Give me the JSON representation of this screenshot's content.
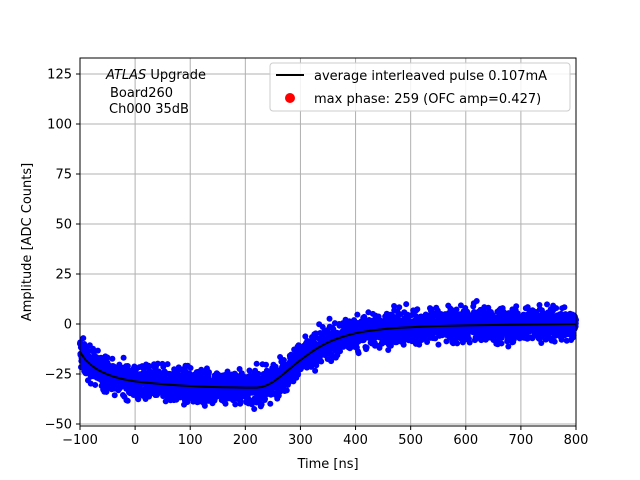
{
  "chart_data": {
    "type": "scatter",
    "xlabel": "Time [ns]",
    "ylabel": "Amplitude [ADC Counts]",
    "xlim": [
      -100,
      800
    ],
    "ylim": [
      -51,
      133
    ],
    "xticks": [
      -100,
      0,
      100,
      200,
      300,
      400,
      500,
      600,
      700,
      800
    ],
    "yticks": [
      -50,
      -25,
      0,
      25,
      50,
      75,
      100,
      125
    ],
    "grid": true,
    "legend_placement": "top-right",
    "annotation": {
      "line1_italic": "ATLAS",
      "line1_rest": " Upgrade",
      "line2": "Board260",
      "line3": "Ch000 35dB"
    },
    "series": [
      {
        "name": "average interleaved pulse 0.107mA",
        "kind": "line",
        "color": "#000000",
        "x": [
          -100,
          -90,
          -80,
          -70,
          -60,
          -50,
          -40,
          -30,
          -20,
          -10,
          0,
          20,
          40,
          60,
          80,
          100,
          120,
          140,
          160,
          180,
          200,
          220,
          230,
          240,
          250,
          260,
          270,
          280,
          290,
          300,
          310,
          320,
          330,
          340,
          350,
          360,
          370,
          380,
          390,
          400,
          420,
          440,
          460,
          480,
          500,
          520,
          550,
          600,
          650,
          700,
          750,
          800
        ],
        "y": [
          -14,
          -18,
          -20.5,
          -22.5,
          -24,
          -25.2,
          -26.2,
          -27,
          -27.7,
          -28.2,
          -28.7,
          -29.3,
          -29.8,
          -30.3,
          -30.7,
          -31,
          -31.3,
          -31.5,
          -31.6,
          -31.7,
          -31.8,
          -31.8,
          -31.5,
          -30.5,
          -29,
          -27,
          -24.8,
          -22.5,
          -20.2,
          -18,
          -16,
          -14,
          -12.2,
          -10.6,
          -9.2,
          -8,
          -7,
          -6.1,
          -5.3,
          -4.6,
          -3.6,
          -2.9,
          -2.3,
          -1.9,
          -1.6,
          -1.3,
          -1,
          -0.7,
          -0.5,
          -0.3,
          -0.2,
          0
        ]
      },
      {
        "name": "max phase: 259 (OFC amp=0.427)",
        "kind": "marker",
        "color": "#ff0000"
      },
      {
        "name": "",
        "kind": "scatter-band",
        "color": "#0000ff",
        "spread": 5.5,
        "x_step": 0.55,
        "description_of_band": ""
      }
    ]
  }
}
